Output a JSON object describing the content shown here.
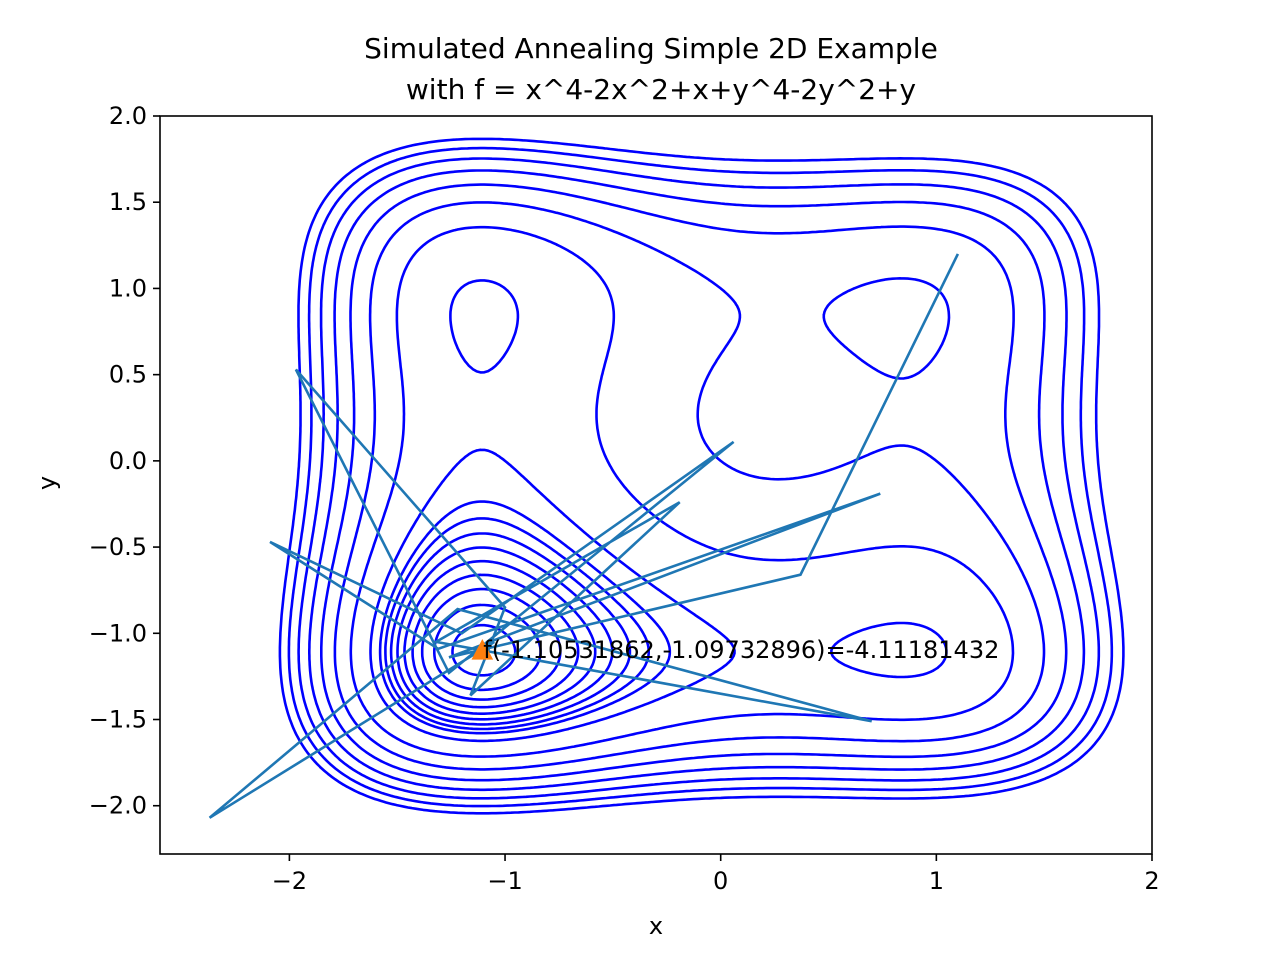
{
  "chart_data": {
    "type": "line",
    "title_line1": "Simulated Annealing Simple 2D Example",
    "title_line2": "with f = x^4-2x^2+x+y^4-2y^2+y",
    "xlabel": "x",
    "ylabel": "y",
    "xlim": [
      -2.6,
      2.0
    ],
    "ylim": [
      -2.28,
      2.0
    ],
    "xticks": [
      -2,
      -1,
      0,
      1,
      2
    ],
    "xtick_labels": [
      "−2",
      "−1",
      "0",
      "1",
      "2"
    ],
    "yticks": [
      -2.0,
      -1.5,
      -1.0,
      -0.5,
      0.0,
      0.5,
      1.0,
      1.5,
      2.0
    ],
    "ytick_labels": [
      "−2.0",
      "−1.5",
      "−1.0",
      "−0.5",
      "0.0",
      "0.5",
      "1.0",
      "1.5",
      "2.0"
    ],
    "grid": false,
    "contour": {
      "function": "x^4-2x^2+x+y^4-2y^2+y",
      "levels": [
        -4.0,
        -3.8,
        -3.6,
        -3.4,
        -3.2,
        -3.0,
        -2.8,
        -2.6,
        -2.4,
        -2.0,
        -1.0,
        0.0,
        1.0,
        2.0,
        3.0,
        4.0,
        5.0
      ],
      "color": "#0000ff"
    },
    "path": {
      "color": "#1f77b4",
      "points": [
        [
          1.1,
          1.2
        ],
        [
          0.37,
          -0.66
        ],
        [
          -1.26,
          -1.14
        ],
        [
          0.74,
          -0.19
        ],
        [
          -1.31,
          -1.09
        ],
        [
          -2.09,
          -0.47
        ],
        [
          -1.2,
          -1.0
        ],
        [
          0.06,
          0.11
        ],
        [
          -1.26,
          -1.23
        ],
        [
          -1.97,
          0.53
        ],
        [
          -1.0,
          -0.85
        ],
        [
          -1.16,
          -1.36
        ],
        [
          -0.19,
          -0.24
        ],
        [
          -1.32,
          -1.05
        ],
        [
          0.7,
          -1.51
        ],
        [
          -1.22,
          -0.86
        ],
        [
          -2.37,
          -2.07
        ],
        [
          -1.05,
          -1.05
        ],
        [
          -1.11,
          -1.1
        ]
      ]
    },
    "final_point": {
      "x": -1.10531862,
      "y": -1.09732896,
      "color": "#ff7f0e"
    },
    "annotation": "f(-1.10531862,-1.09732896)=-4.11181432"
  }
}
